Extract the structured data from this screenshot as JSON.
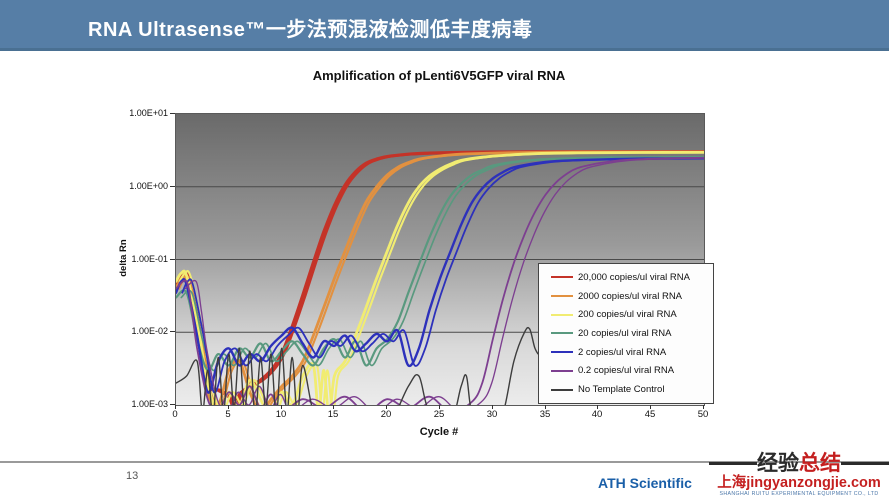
{
  "header": {
    "title": "RNA Ultrasense™一步法预混液检测低丰度病毒",
    "bar_color": "#567ea6"
  },
  "footer": {
    "page_number": "13",
    "brand": "ATH Scientific",
    "brand_color": "#1a5fa8",
    "watermark": {
      "title_black": "经验",
      "title_red": "总结",
      "domain": "上海jingyanzongjie.com",
      "subtext": "SHANGHAI RUITU EXPERIMENTAL EQUIPMENT CO., LTD",
      "accent_color": "#c41f1f"
    }
  },
  "chart_data": {
    "type": "line",
    "title": "Amplification of pLenti6V5GFP viral RNA",
    "xlabel": "Cycle #",
    "ylabel": "delta Rn",
    "xlim": [
      0,
      50
    ],
    "ylim": [
      0.001,
      10
    ],
    "y_scale": "log",
    "grid": "horizontal-decades",
    "grid_color": "#4a4a4a",
    "plot_bg": [
      "#6a6a6a",
      "#ececec"
    ],
    "legend_position": "inside-bottom-right",
    "x_ticks": [
      0,
      5,
      10,
      15,
      20,
      25,
      30,
      35,
      40,
      45,
      50
    ],
    "y_ticks": [
      {
        "label": "1.00E+01",
        "value": 10
      },
      {
        "label": "1.00E+00",
        "value": 1
      },
      {
        "label": "1.00E-01",
        "value": 0.1
      },
      {
        "label": "1.00E-02",
        "value": 0.01
      },
      {
        "label": "1.00E-03",
        "value": 0.001
      }
    ],
    "gridlines": [
      1,
      0.1,
      0.01
    ],
    "series": [
      {
        "label": "20,000 copies/ul viral RNA",
        "color": "#c43328",
        "width": 3.2,
        "replicate_offset": 0.25,
        "points": [
          [
            0,
            0.045
          ],
          [
            0.5,
            0.06
          ],
          [
            1,
            0.055
          ],
          [
            2,
            0.012
          ],
          [
            3,
            0.002
          ],
          [
            4,
            0.0016
          ],
          [
            5,
            0.0013
          ],
          [
            5.5,
            0.0009
          ],
          [
            6,
            0.0014
          ],
          [
            7,
            0.0018
          ],
          [
            8,
            0.0022
          ],
          [
            9,
            0.003
          ],
          [
            10,
            0.005
          ],
          [
            11,
            0.012
          ],
          [
            12,
            0.032
          ],
          [
            13,
            0.09
          ],
          [
            14,
            0.24
          ],
          [
            15,
            0.55
          ],
          [
            16,
            1.05
          ],
          [
            17,
            1.6
          ],
          [
            18,
            2.1
          ],
          [
            19,
            2.4
          ],
          [
            20,
            2.6
          ],
          [
            22,
            2.8
          ],
          [
            24,
            2.9
          ],
          [
            26,
            2.95
          ],
          [
            30,
            3.0
          ],
          [
            35,
            3.02
          ],
          [
            40,
            3.03
          ],
          [
            45,
            3.03
          ],
          [
            50,
            3.03
          ]
        ]
      },
      {
        "label": "2000 copies/ul viral RNA",
        "color": "#e29140",
        "width": 2.8,
        "replicate_offset": 0.3,
        "points": [
          [
            0,
            0.04
          ],
          [
            0.5,
            0.055
          ],
          [
            1,
            0.05
          ],
          [
            2,
            0.01
          ],
          [
            3,
            0.0015
          ],
          [
            4,
            0.001
          ],
          [
            5,
            0.003
          ],
          [
            6,
            0.004
          ],
          [
            7,
            0.0015
          ],
          [
            8,
            0.0008
          ],
          [
            9,
            0.0012
          ],
          [
            10,
            0.0018
          ],
          [
            11,
            0.0025
          ],
          [
            12,
            0.004
          ],
          [
            13,
            0.009
          ],
          [
            14,
            0.022
          ],
          [
            15,
            0.055
          ],
          [
            16,
            0.13
          ],
          [
            17,
            0.3
          ],
          [
            18,
            0.62
          ],
          [
            19,
            1.0
          ],
          [
            20,
            1.45
          ],
          [
            21,
            1.85
          ],
          [
            22,
            2.15
          ],
          [
            23,
            2.4
          ],
          [
            25,
            2.65
          ],
          [
            27,
            2.8
          ],
          [
            30,
            2.9
          ],
          [
            35,
            2.98
          ],
          [
            40,
            3.0
          ],
          [
            45,
            3.0
          ],
          [
            50,
            3.0
          ]
        ]
      },
      {
        "label": "200 copies/ul viral RNA",
        "color": "#f1ec72",
        "width": 2.8,
        "replicate_offset": 0.35,
        "points": [
          [
            0,
            0.05
          ],
          [
            0.5,
            0.065
          ],
          [
            1,
            0.06
          ],
          [
            2,
            0.014
          ],
          [
            3,
            0.002
          ],
          [
            4,
            0.0008
          ],
          [
            5,
            0.0015
          ],
          [
            6,
            0.001
          ],
          [
            7,
            0.0022
          ],
          [
            8,
            0.0012
          ],
          [
            9,
            0.0007
          ],
          [
            10,
            0.0015
          ],
          [
            11,
            0.001
          ],
          [
            12,
            0.0025
          ],
          [
            13,
            0.0035
          ],
          [
            13.5,
            0.0008
          ],
          [
            14,
            0.003
          ],
          [
            14.5,
            0.0007
          ],
          [
            15,
            0.0025
          ],
          [
            16,
            0.004
          ],
          [
            17,
            0.009
          ],
          [
            18,
            0.022
          ],
          [
            19,
            0.055
          ],
          [
            20,
            0.13
          ],
          [
            21,
            0.3
          ],
          [
            22,
            0.6
          ],
          [
            23,
            1.0
          ],
          [
            24,
            1.4
          ],
          [
            25,
            1.75
          ],
          [
            26,
            2.05
          ],
          [
            27,
            2.3
          ],
          [
            29,
            2.55
          ],
          [
            31,
            2.7
          ],
          [
            34,
            2.85
          ],
          [
            38,
            2.92
          ],
          [
            44,
            2.96
          ],
          [
            50,
            2.97
          ]
        ]
      },
      {
        "label": "20 copies/ul viral RNA",
        "color": "#59997f",
        "width": 2.2,
        "replicate_offset": 0.5,
        "points": [
          [
            0,
            0.03
          ],
          [
            1,
            0.035
          ],
          [
            2,
            0.008
          ],
          [
            3,
            0.003
          ],
          [
            4,
            0.005
          ],
          [
            5,
            0.0035
          ],
          [
            6,
            0.006
          ],
          [
            7,
            0.0045
          ],
          [
            8,
            0.007
          ],
          [
            9,
            0.004
          ],
          [
            10,
            0.0055
          ],
          [
            11,
            0.0075
          ],
          [
            12,
            0.005
          ],
          [
            13,
            0.0035
          ],
          [
            14,
            0.006
          ],
          [
            15,
            0.008
          ],
          [
            16,
            0.0045
          ],
          [
            17,
            0.0075
          ],
          [
            18,
            0.0035
          ],
          [
            19,
            0.006
          ],
          [
            20,
            0.008
          ],
          [
            21,
            0.014
          ],
          [
            22,
            0.035
          ],
          [
            23,
            0.085
          ],
          [
            24,
            0.2
          ],
          [
            25,
            0.42
          ],
          [
            26,
            0.75
          ],
          [
            27,
            1.1
          ],
          [
            28,
            1.45
          ],
          [
            29,
            1.7
          ],
          [
            30,
            1.95
          ],
          [
            32,
            2.2
          ],
          [
            34,
            2.35
          ],
          [
            37,
            2.45
          ],
          [
            41,
            2.52
          ],
          [
            46,
            2.55
          ],
          [
            50,
            2.56
          ]
        ]
      },
      {
        "label": "2 copies/ul viral RNA",
        "color": "#2d31bb",
        "width": 2.4,
        "replicate_offset": 0.6,
        "points": [
          [
            0,
            0.035
          ],
          [
            0.5,
            0.05
          ],
          [
            1,
            0.045
          ],
          [
            2,
            0.009
          ],
          [
            3,
            0.0015
          ],
          [
            4,
            0.004
          ],
          [
            5,
            0.006
          ],
          [
            6,
            0.0035
          ],
          [
            7,
            0.005
          ],
          [
            8,
            0.004
          ],
          [
            9,
            0.0065
          ],
          [
            10,
            0.009
          ],
          [
            11,
            0.0115
          ],
          [
            12,
            0.007
          ],
          [
            13,
            0.0045
          ],
          [
            14,
            0.0075
          ],
          [
            15,
            0.0065
          ],
          [
            16,
            0.009
          ],
          [
            17,
            0.0055
          ],
          [
            18,
            0.007
          ],
          [
            19,
            0.0095
          ],
          [
            20,
            0.0075
          ],
          [
            21,
            0.0105
          ],
          [
            22,
            0.0035
          ],
          [
            23,
            0.006
          ],
          [
            24,
            0.02
          ],
          [
            25,
            0.055
          ],
          [
            26,
            0.13
          ],
          [
            27,
            0.3
          ],
          [
            28,
            0.6
          ],
          [
            29,
            0.95
          ],
          [
            30,
            1.3
          ],
          [
            31,
            1.6
          ],
          [
            32,
            1.85
          ],
          [
            34,
            2.1
          ],
          [
            36,
            2.25
          ],
          [
            39,
            2.35
          ],
          [
            43,
            2.42
          ],
          [
            47,
            2.45
          ],
          [
            50,
            2.46
          ]
        ]
      },
      {
        "label": "0.2 copies/ul viral RNA",
        "color": "#7d3f90",
        "width": 1.8,
        "replicate_offset": 0.9,
        "points": [
          [
            0,
            0.04
          ],
          [
            1,
            0.05
          ],
          [
            1.5,
            0.02
          ],
          [
            2,
            0.006
          ],
          [
            3,
            0.0012
          ],
          [
            4,
            0.0008
          ],
          [
            5,
            0.0015
          ],
          [
            6,
            0.001
          ],
          [
            7,
            0.0018
          ],
          [
            8,
            0.0009
          ],
          [
            9,
            0.0014
          ],
          [
            10,
            0.0008
          ],
          [
            12,
            0.0012
          ],
          [
            14,
            0.0009
          ],
          [
            16,
            0.0013
          ],
          [
            18,
            0.0008
          ],
          [
            20,
            0.0012
          ],
          [
            22,
            0.0009
          ],
          [
            24,
            0.0013
          ],
          [
            26,
            0.0008
          ],
          [
            28,
            0.0011
          ],
          [
            29,
            0.002
          ],
          [
            30,
            0.008
          ],
          [
            31,
            0.03
          ],
          [
            32,
            0.09
          ],
          [
            33,
            0.22
          ],
          [
            34,
            0.45
          ],
          [
            35,
            0.78
          ],
          [
            36,
            1.15
          ],
          [
            37,
            1.5
          ],
          [
            38,
            1.8
          ],
          [
            40,
            2.1
          ],
          [
            42,
            2.3
          ],
          [
            45,
            2.42
          ],
          [
            48,
            2.48
          ],
          [
            50,
            2.5
          ]
        ]
      },
      {
        "label": "No Template Control",
        "color": "#3d3d3d",
        "width": 1.4,
        "replicate_offset": 0,
        "points": [
          [
            0,
            0.002
          ],
          [
            1,
            0.0025
          ],
          [
            2,
            0.004
          ],
          [
            2.5,
            0.0008
          ],
          [
            3,
            0.003
          ],
          [
            3.5,
            0.0007
          ],
          [
            4,
            0.0045
          ],
          [
            4.5,
            0.0008
          ],
          [
            5,
            0.005
          ],
          [
            5.5,
            0.0009
          ],
          [
            6,
            0.006
          ],
          [
            6.5,
            0.0008
          ],
          [
            7,
            0.0055
          ],
          [
            7.5,
            0.0007
          ],
          [
            8,
            0.0045
          ],
          [
            8.5,
            0.0009
          ],
          [
            9,
            0.005
          ],
          [
            9.5,
            0.0007
          ],
          [
            10,
            0.006
          ],
          [
            10.5,
            0.0008
          ],
          [
            11,
            0.0045
          ],
          [
            11.5,
            0.0007
          ],
          [
            12,
            0.0035
          ],
          [
            13,
            0.0008
          ],
          [
            14,
            0.0006
          ],
          [
            16,
            0.0005
          ],
          [
            18,
            0.0006
          ],
          [
            20,
            0.0005
          ],
          [
            22,
            0.0018
          ],
          [
            23,
            0.0025
          ],
          [
            24,
            0.0008
          ],
          [
            26,
            0.0006
          ],
          [
            27,
            0.0018
          ],
          [
            27.5,
            0.0025
          ],
          [
            28,
            0.0008
          ],
          [
            29,
            0.0006
          ],
          [
            30,
            0.0005
          ],
          [
            31,
            0.0008
          ],
          [
            32,
            0.004
          ],
          [
            33,
            0.01
          ],
          [
            33.5,
            0.011
          ],
          [
            34,
            0.006
          ],
          [
            34.5,
            0.005
          ],
          [
            35,
            0.008
          ],
          [
            35.5,
            0.011
          ],
          [
            36,
            0.013
          ],
          [
            38,
            0.018
          ],
          [
            41,
            0.025
          ],
          [
            44,
            0.035
          ],
          [
            47,
            0.048
          ],
          [
            50,
            0.06
          ]
        ]
      }
    ]
  }
}
